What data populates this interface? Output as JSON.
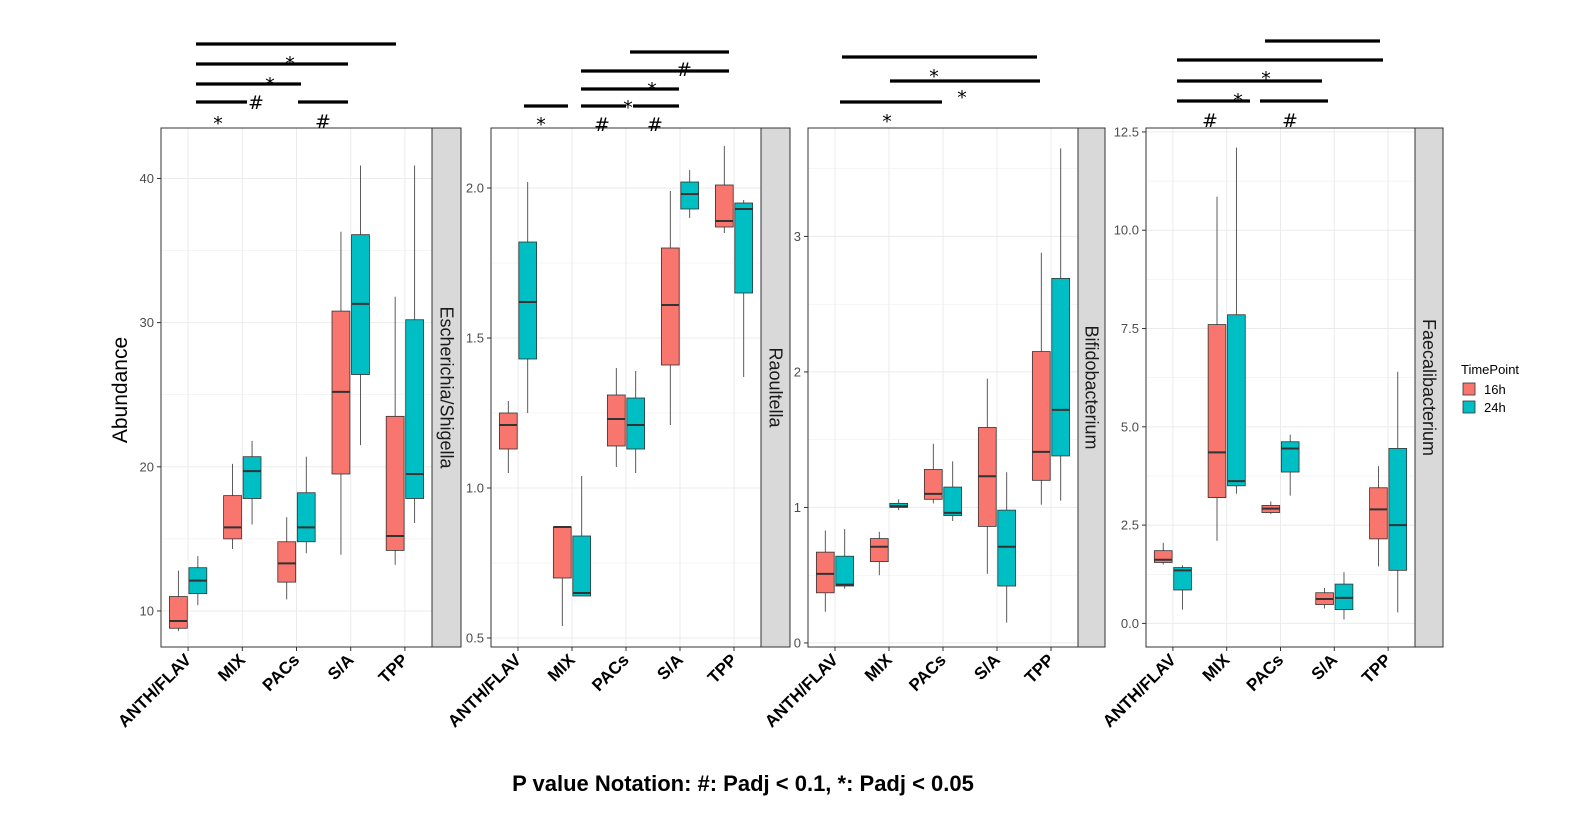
{
  "colors": {
    "h16": "#F8766D",
    "h24": "#00BFC4",
    "grid": "#ebebeb",
    "strip": "#d9d9d9"
  },
  "y_label": "Abundance",
  "legend": {
    "title": "TimePoint",
    "items": [
      "16h",
      "24h"
    ]
  },
  "caption": "P value Notation: #: Padj < 0.1, *: Padj < 0.05",
  "chart_data": [
    {
      "type": "box",
      "facet": "Escherichia/Shigella",
      "categories": [
        "ANTH/FLAV",
        "MIX",
        "PACs",
        "S/A",
        "TPP"
      ],
      "ylim": [
        7.5,
        43.5
      ],
      "yticks": [
        10,
        20,
        30,
        40
      ],
      "grid": true,
      "series": [
        {
          "name": "16h",
          "boxes": [
            {
              "min": 8.6,
              "q1": 8.8,
              "median": 9.3,
              "q3": 11.0,
              "max": 12.8
            },
            {
              "min": 14.3,
              "q1": 15.0,
              "median": 15.8,
              "q3": 18.0,
              "max": 20.2
            },
            {
              "min": 10.8,
              "q1": 12.0,
              "median": 13.3,
              "q3": 14.8,
              "max": 16.5
            },
            {
              "min": 13.9,
              "q1": 19.5,
              "median": 25.2,
              "q3": 30.8,
              "max": 36.3
            },
            {
              "min": 13.2,
              "q1": 14.2,
              "median": 15.2,
              "q3": 23.5,
              "max": 31.8
            }
          ]
        },
        {
          "name": "24h",
          "boxes": [
            {
              "min": 10.4,
              "q1": 11.2,
              "median": 12.1,
              "q3": 13.0,
              "max": 13.8
            },
            {
              "min": 16.0,
              "q1": 17.8,
              "median": 19.7,
              "q3": 20.7,
              "max": 21.8
            },
            {
              "min": 14.0,
              "q1": 14.8,
              "median": 15.8,
              "q3": 18.2,
              "max": 20.7
            },
            {
              "min": 21.5,
              "q1": 26.4,
              "median": 31.3,
              "q3": 36.1,
              "max": 40.9
            },
            {
              "min": 16.1,
              "q1": 17.8,
              "median": 19.5,
              "q3": 30.2,
              "max": 40.9
            }
          ]
        }
      ],
      "annotations": [
        "*",
        "*",
        "#",
        "*",
        "#"
      ]
    },
    {
      "type": "box",
      "facet": "Raoultella",
      "categories": [
        "ANTH/FLAV",
        "MIX",
        "PACs",
        "S/A",
        "TPP"
      ],
      "ylim": [
        0.47,
        2.2
      ],
      "yticks": [
        0.5,
        1.0,
        1.5,
        2.0
      ],
      "ytick_labels": [
        "0.5",
        "1.0",
        "1.5",
        "2.0"
      ],
      "grid": true,
      "series": [
        {
          "name": "16h",
          "boxes": [
            {
              "min": 1.05,
              "q1": 1.13,
              "median": 1.21,
              "q3": 1.25,
              "max": 1.29
            },
            {
              "min": 0.54,
              "q1": 0.7,
              "median": 0.87,
              "q3": 0.87,
              "max": 0.87
            },
            {
              "min": 1.07,
              "q1": 1.14,
              "median": 1.23,
              "q3": 1.31,
              "max": 1.4
            },
            {
              "min": 1.21,
              "q1": 1.41,
              "median": 1.61,
              "q3": 1.8,
              "max": 1.99
            },
            {
              "min": 1.85,
              "q1": 1.87,
              "median": 1.89,
              "q3": 2.01,
              "max": 2.14
            }
          ]
        },
        {
          "name": "24h",
          "boxes": [
            {
              "min": 1.25,
              "q1": 1.43,
              "median": 1.62,
              "q3": 1.82,
              "max": 2.02
            },
            {
              "min": 0.64,
              "q1": 0.64,
              "median": 0.65,
              "q3": 0.84,
              "max": 1.04
            },
            {
              "min": 1.05,
              "q1": 1.13,
              "median": 1.21,
              "q3": 1.3,
              "max": 1.39
            },
            {
              "min": 1.9,
              "q1": 1.93,
              "median": 1.98,
              "q3": 2.02,
              "max": 2.06
            },
            {
              "min": 1.37,
              "q1": 1.65,
              "median": 1.93,
              "q3": 1.95,
              "max": 1.96
            }
          ]
        }
      ],
      "annotations": [
        "*",
        "#",
        "*",
        "#",
        "*",
        "#"
      ]
    },
    {
      "type": "box",
      "facet": "Bifidobacterium",
      "categories": [
        "ANTH/FLAV",
        "MIX",
        "PACs",
        "S/A",
        "TPP"
      ],
      "ylim": [
        -0.03,
        3.8
      ],
      "yticks": [
        0,
        1,
        2,
        3
      ],
      "grid": true,
      "series": [
        {
          "name": "16h",
          "boxes": [
            {
              "min": 0.23,
              "q1": 0.37,
              "median": 0.51,
              "q3": 0.67,
              "max": 0.83
            },
            {
              "min": 0.5,
              "q1": 0.6,
              "median": 0.71,
              "q3": 0.77,
              "max": 0.82
            },
            {
              "min": 1.03,
              "q1": 1.06,
              "median": 1.1,
              "q3": 1.28,
              "max": 1.47
            },
            {
              "min": 0.51,
              "q1": 0.86,
              "median": 1.23,
              "q3": 1.59,
              "max": 1.95
            },
            {
              "min": 1.02,
              "q1": 1.2,
              "median": 1.41,
              "q3": 2.15,
              "max": 2.88
            }
          ]
        },
        {
          "name": "24h",
          "boxes": [
            {
              "min": 0.4,
              "q1": 0.42,
              "median": 0.43,
              "q3": 0.64,
              "max": 0.84
            },
            {
              "min": 0.98,
              "q1": 1.0,
              "median": 1.01,
              "q3": 1.03,
              "max": 1.06
            },
            {
              "min": 0.9,
              "q1": 0.94,
              "median": 0.96,
              "q3": 1.15,
              "max": 1.34
            },
            {
              "min": 0.15,
              "q1": 0.42,
              "median": 0.71,
              "q3": 0.98,
              "max": 1.26
            },
            {
              "min": 1.05,
              "q1": 1.38,
              "median": 1.72,
              "q3": 2.69,
              "max": 3.65
            }
          ]
        }
      ],
      "annotations": [
        "*",
        "*",
        "*"
      ]
    },
    {
      "type": "box",
      "facet": "Faecalibacterium",
      "categories": [
        "ANTH/FLAV",
        "MIX",
        "PACs",
        "S/A",
        "TPP"
      ],
      "ylim": [
        -0.6,
        12.6
      ],
      "yticks": [
        0,
        2.5,
        5,
        7.5,
        10,
        12.5
      ],
      "ytick_labels": [
        "0.0",
        "2.5",
        "5.0",
        "7.5",
        "10.0",
        "12.5"
      ],
      "grid": true,
      "series": [
        {
          "name": "16h",
          "boxes": [
            {
              "min": 1.5,
              "q1": 1.55,
              "median": 1.62,
              "q3": 1.85,
              "max": 2.05
            },
            {
              "min": 2.1,
              "q1": 3.2,
              "median": 4.35,
              "q3": 7.6,
              "max": 10.85
            },
            {
              "min": 2.78,
              "q1": 2.82,
              "median": 2.92,
              "q3": 3.0,
              "max": 3.1
            },
            {
              "min": 0.38,
              "q1": 0.48,
              "median": 0.62,
              "q3": 0.78,
              "max": 0.9
            },
            {
              "min": 1.45,
              "q1": 2.15,
              "median": 2.9,
              "q3": 3.45,
              "max": 4.0
            }
          ]
        },
        {
          "name": "24h",
          "boxes": [
            {
              "min": 0.35,
              "q1": 0.85,
              "median": 1.35,
              "q3": 1.42,
              "max": 1.48
            },
            {
              "min": 3.3,
              "q1": 3.5,
              "median": 3.62,
              "q3": 7.85,
              "max": 12.1
            },
            {
              "min": 3.25,
              "q1": 3.85,
              "median": 4.45,
              "q3": 4.62,
              "max": 4.8
            },
            {
              "min": 0.1,
              "q1": 0.35,
              "median": 0.65,
              "q3": 1.0,
              "max": 1.3
            },
            {
              "min": 0.28,
              "q1": 1.35,
              "median": 2.5,
              "q3": 4.45,
              "max": 6.4
            }
          ]
        }
      ],
      "annotations": [
        "#",
        "*",
        "*",
        "#"
      ]
    }
  ]
}
